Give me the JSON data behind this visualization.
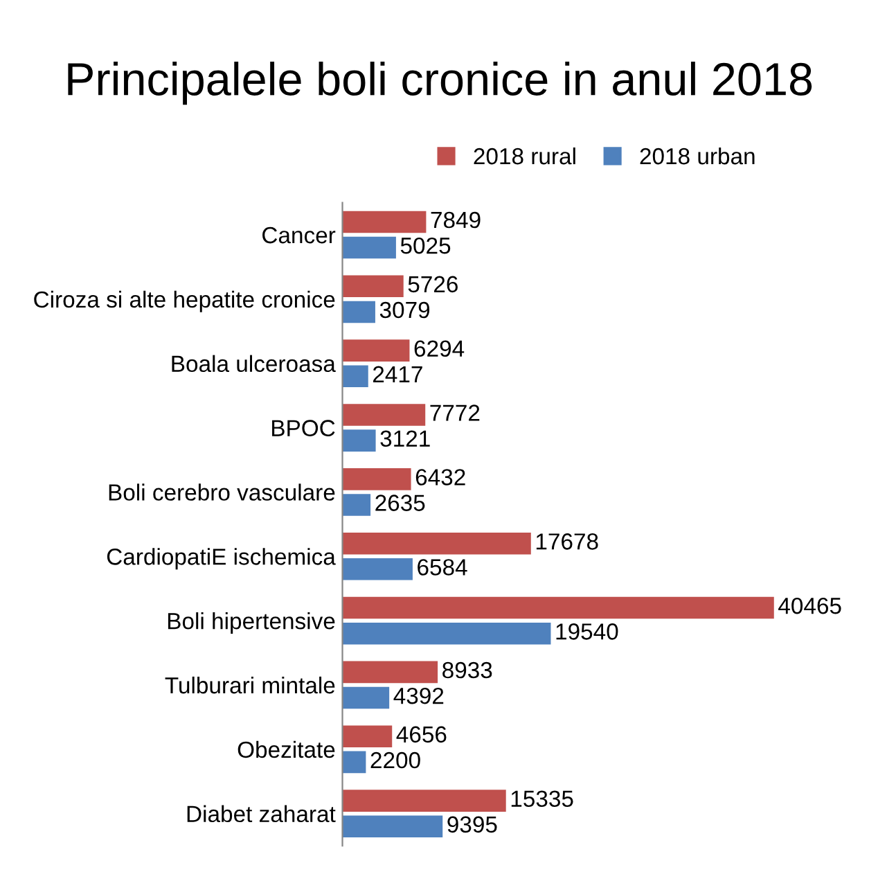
{
  "chart_data": {
    "type": "bar",
    "orientation": "horizontal",
    "title": "Principalele boli cronice in anul 2018",
    "categories": [
      "Cancer",
      "Ciroza si alte hepatite cronice",
      "Boala ulceroasa",
      "BPOC",
      "Boli cerebro vasculare",
      "CardiopatiE ischemica",
      "Boli hipertensive",
      "Tulburari mintale",
      "Obezitate",
      "Diabet zaharat"
    ],
    "series": [
      {
        "name": "2018 rural",
        "color": "#c0504d",
        "values": [
          7849,
          5726,
          6294,
          7772,
          6432,
          17678,
          40465,
          8933,
          4656,
          15335
        ]
      },
      {
        "name": "2018 urban",
        "color": "#4f81bd",
        "values": [
          5025,
          3079,
          2417,
          3121,
          2635,
          6584,
          19540,
          4392,
          2200,
          9395
        ]
      }
    ],
    "data_labels": true,
    "legend": "top",
    "grid": false
  }
}
